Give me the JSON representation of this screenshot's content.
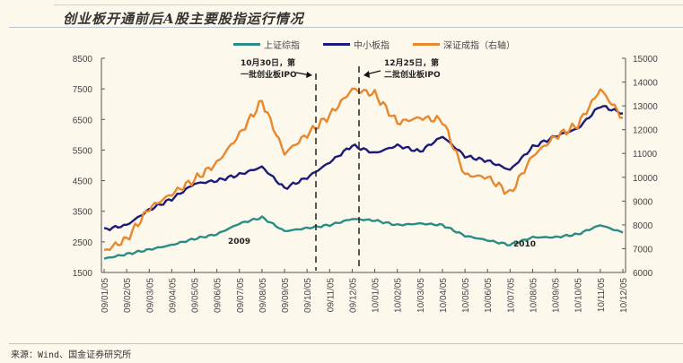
{
  "header": {
    "title": "创业板开通前后A股主要股指运行情况"
  },
  "footer": {
    "source": "来源：Wind、国金证券研究所"
  },
  "chart_data": {
    "type": "line",
    "title": "创业板开通前后A股主要股指运行情况",
    "xlabel": "",
    "ylabel": "",
    "y2label": "深证成指（右轴）",
    "ylim": [
      1500,
      8500
    ],
    "y2lim": [
      6000,
      15000
    ],
    "yticks": [
      1500,
      2500,
      3500,
      4500,
      5500,
      6500,
      7500,
      8500
    ],
    "y2ticks": [
      6000,
      7000,
      8000,
      9000,
      10000,
      11000,
      12000,
      13000,
      14000,
      15000
    ],
    "categories": [
      "09/01/05",
      "09/02/05",
      "09/03/05",
      "09/04/05",
      "09/05/05",
      "09/06/05",
      "09/07/05",
      "09/08/05",
      "09/09/05",
      "09/10/05",
      "09/11/05",
      "09/12/05",
      "10/01/05",
      "10/02/05",
      "10/03/05",
      "10/04/05",
      "10/05/05",
      "10/06/05",
      "10/07/05",
      "10/08/05",
      "10/09/05",
      "10/10/05",
      "10/11/05",
      "10/12/05"
    ],
    "legend_position": "top",
    "grid": false,
    "series": [
      {
        "name": "上证综指",
        "axis": "left",
        "color": "#2a8c86",
        "values": [
          1950,
          2100,
          2250,
          2400,
          2600,
          2750,
          3100,
          3300,
          2850,
          2950,
          3050,
          3250,
          3200,
          3050,
          3100,
          3050,
          2700,
          2550,
          2400,
          2650,
          2650,
          2750,
          3050,
          2800
        ]
      },
      {
        "name": "中小板指",
        "axis": "left",
        "color": "#1c1a7a",
        "values": [
          2900,
          3050,
          3550,
          3900,
          4400,
          4500,
          4700,
          4950,
          4250,
          4600,
          5100,
          5650,
          5400,
          5650,
          5450,
          5950,
          5300,
          5150,
          4850,
          5600,
          5950,
          6200,
          6950,
          6700
        ]
      },
      {
        "name": "深证成指（右轴）",
        "axis": "right",
        "color": "#e8882e",
        "values": [
          6900,
          7400,
          8700,
          9300,
          9900,
          10600,
          11800,
          13200,
          11000,
          11800,
          12600,
          13700,
          13500,
          12300,
          12500,
          12400,
          10100,
          10000,
          9300,
          10900,
          11700,
          12200,
          13700,
          12500
        ]
      }
    ],
    "annotations": [
      {
        "text_line1": "10月30日，第",
        "text_line2": "一批创业板IPO",
        "x_date": "09/10/30"
      },
      {
        "text_line1": "12月25日，第",
        "text_line2": "二批创业板IPO",
        "x_date": "09/12/25"
      },
      {
        "text": "2009"
      },
      {
        "text": "2010"
      }
    ]
  }
}
